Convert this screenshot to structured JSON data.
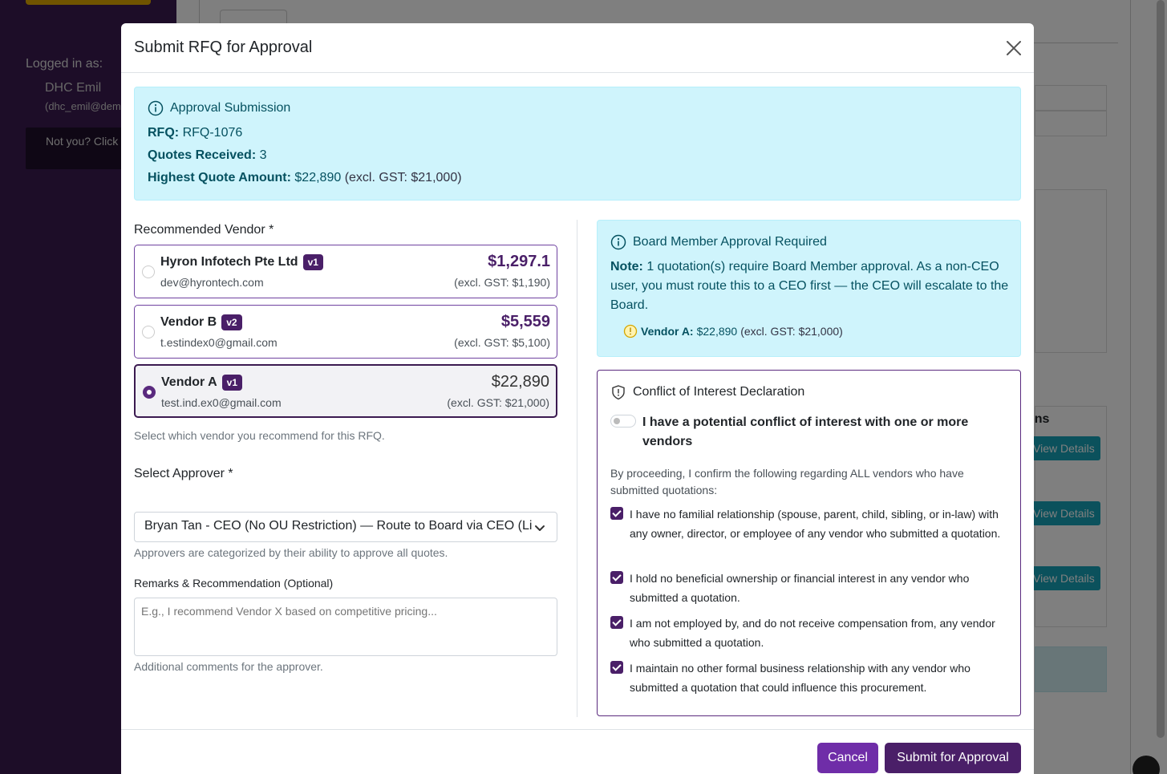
{
  "background": {
    "logged_in_label": "Logged in as:",
    "user_name": "DHC Emil",
    "user_email": "(dhc_emil@dem",
    "not_you": "Not you? Click here",
    "table_header_fragment": "ons",
    "view_details_label": "View Details"
  },
  "modal": {
    "title": "Submit RFQ for Approval",
    "summary": {
      "heading": "Approval Submission",
      "rfq_label": "RFQ:",
      "rfq_value": "RFQ-1076",
      "quotes_label": "Quotes Received:",
      "quotes_value": "3",
      "highest_label": "Highest Quote Amount:",
      "highest_value": "$22,890",
      "highest_excl": "(excl. GST: $21,000)"
    },
    "vendor_section": {
      "label": "Recommended Vendor *",
      "help": "Select which vendor you recommend for this RFQ.",
      "vendors": [
        {
          "name": "Hyron Infotech Pte Ltd",
          "version": "v1",
          "email": "dev@hyrontech.com",
          "amount": "$1,297.1",
          "excl": "(excl. GST: $1,190)",
          "selected": false
        },
        {
          "name": "Vendor B",
          "version": "v2",
          "email": "t.estindex0@gmail.com",
          "amount": "$5,559",
          "excl": "(excl. GST: $5,100)",
          "selected": false
        },
        {
          "name": "Vendor A",
          "version": "v1",
          "email": "test.ind.ex0@gmail.com",
          "amount": "$22,890",
          "excl": "(excl. GST: $21,000)",
          "selected": true
        }
      ]
    },
    "approver": {
      "label": "Select Approver *",
      "selected": "Bryan Tan - CEO (No OU Restriction) — Route to Board via CEO (Li",
      "help": "Approvers are categorized by their ability to approve all quotes."
    },
    "remarks": {
      "label": "Remarks & Recommendation (Optional)",
      "placeholder": "E.g., I recommend Vendor X based on competitive pricing...",
      "help": "Additional comments for the approver."
    },
    "board_alert": {
      "heading": "Board Member Approval Required",
      "note_label": "Note:",
      "note_text": " 1 quotation(s) require Board Member approval. As a non-CEO user, you must route this to a CEO first — the CEO will escalate to the Board.",
      "vendor_label": "Vendor A:",
      "vendor_amount": "$22,890",
      "vendor_excl": "(excl. GST: $21,000)"
    },
    "coi": {
      "heading": "Conflict of Interest Declaration",
      "toggle_label": "I have a potential conflict of interest with one or more vendors",
      "intro": "By proceeding, I confirm the following regarding ALL vendors who have submitted quotations:",
      "declarations": [
        "I have no familial relationship (spouse, parent, child, sibling, or in-law) with any owner, director, or employee of any vendor who submitted a quotation.",
        "I hold no beneficial ownership or financial interest in any vendor who submitted a quotation.",
        "I am not employed by, and do not receive compensation from, any vendor who submitted a quotation.",
        "I maintain no other formal business relationship with any vendor who submitted a quotation that could influence this procurement."
      ]
    },
    "buttons": {
      "cancel": "Cancel",
      "submit": "Submit for Approval"
    }
  },
  "colors": {
    "brand_purple": "#4a1f68",
    "info_bg": "#cff4fc",
    "info_text": "#055160"
  }
}
